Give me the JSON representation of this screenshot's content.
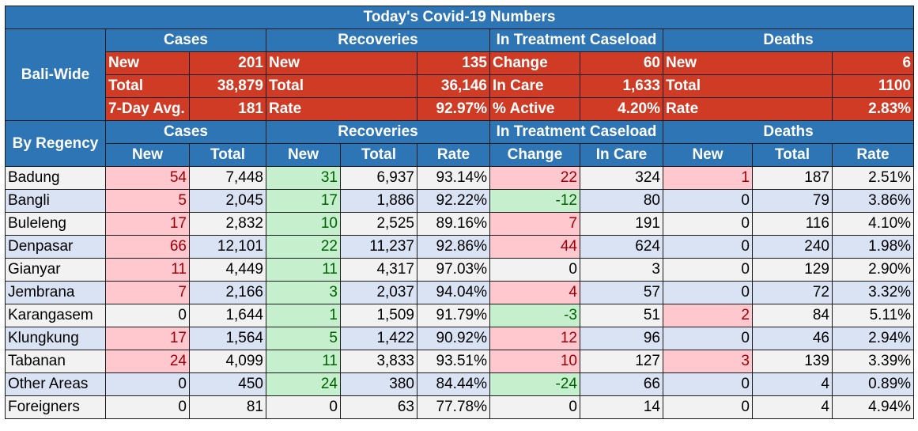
{
  "title": "Today's Covid-19 Numbers",
  "bali_wide": {
    "label": "Bali-Wide",
    "groups": [
      "Cases",
      "Recoveries",
      "In Treatment Caseload",
      "Deaths"
    ],
    "rows": [
      [
        [
          "New",
          "201"
        ],
        [
          "New",
          "135"
        ],
        [
          "Change",
          "60"
        ],
        [
          "New",
          "6"
        ]
      ],
      [
        [
          "Total",
          "38,879"
        ],
        [
          "Total",
          "36,146"
        ],
        [
          "In Care",
          "1,633"
        ],
        [
          "Total",
          "1100"
        ]
      ],
      [
        [
          "7-Day Avg.",
          "181"
        ],
        [
          "Rate",
          "92.97%"
        ],
        [
          "% Active",
          "4.20%"
        ],
        [
          "Rate",
          "2.83%"
        ]
      ]
    ]
  },
  "by_regency": {
    "label": "By Regency",
    "groups": [
      "Cases",
      "Recoveries",
      "In Treatment Caseload",
      "Deaths"
    ],
    "subheaders": [
      "New",
      "Total",
      "New",
      "Total",
      "Rate",
      "Change",
      "In Care",
      "New",
      "Total",
      "Rate"
    ],
    "rows": [
      [
        "Badung",
        "54",
        "7,448",
        "31",
        "6,937",
        "93.14%",
        "22",
        "324",
        "1",
        "187",
        "2.51%"
      ],
      [
        "Bangli",
        "5",
        "2,045",
        "17",
        "1,886",
        "92.22%",
        "-12",
        "80",
        "0",
        "79",
        "3.86%"
      ],
      [
        "Buleleng",
        "17",
        "2,832",
        "10",
        "2,525",
        "89.16%",
        "7",
        "191",
        "0",
        "116",
        "4.10%"
      ],
      [
        "Denpasar",
        "66",
        "12,101",
        "22",
        "11,237",
        "92.86%",
        "44",
        "624",
        "0",
        "240",
        "1.98%"
      ],
      [
        "Gianyar",
        "11",
        "4,449",
        "11",
        "4,317",
        "97.03%",
        "0",
        "3",
        "0",
        "129",
        "2.90%"
      ],
      [
        "Jembrana",
        "7",
        "2,166",
        "3",
        "2,037",
        "94.04%",
        "4",
        "57",
        "0",
        "72",
        "3.32%"
      ],
      [
        "Karangasem",
        "0",
        "1,644",
        "1",
        "1,509",
        "91.79%",
        "-3",
        "51",
        "2",
        "84",
        "5.11%"
      ],
      [
        "Klungkung",
        "17",
        "1,564",
        "5",
        "1,422",
        "90.92%",
        "12",
        "96",
        "0",
        "46",
        "2.94%"
      ],
      [
        "Tabanan",
        "24",
        "4,099",
        "11",
        "3,833",
        "93.51%",
        "10",
        "127",
        "3",
        "139",
        "3.39%"
      ],
      [
        "Other Areas",
        "0",
        "450",
        "24",
        "380",
        "84.44%",
        "-24",
        "66",
        "0",
        "4",
        "0.89%"
      ],
      [
        "Foreigners",
        "0",
        "81",
        "0",
        "63",
        "77.78%",
        "0",
        "14",
        "0",
        "4",
        "4.94%"
      ]
    ]
  },
  "colors": {
    "header_blue": "#2e75b6",
    "summary_red": "#d03b26",
    "positive_fill": "#ffc7ce",
    "positive_text": "#9c0006",
    "negative_fill": "#c6efce",
    "negative_text": "#006100",
    "row_odd": "#f2f2f2",
    "row_even": "#dae3f3"
  }
}
